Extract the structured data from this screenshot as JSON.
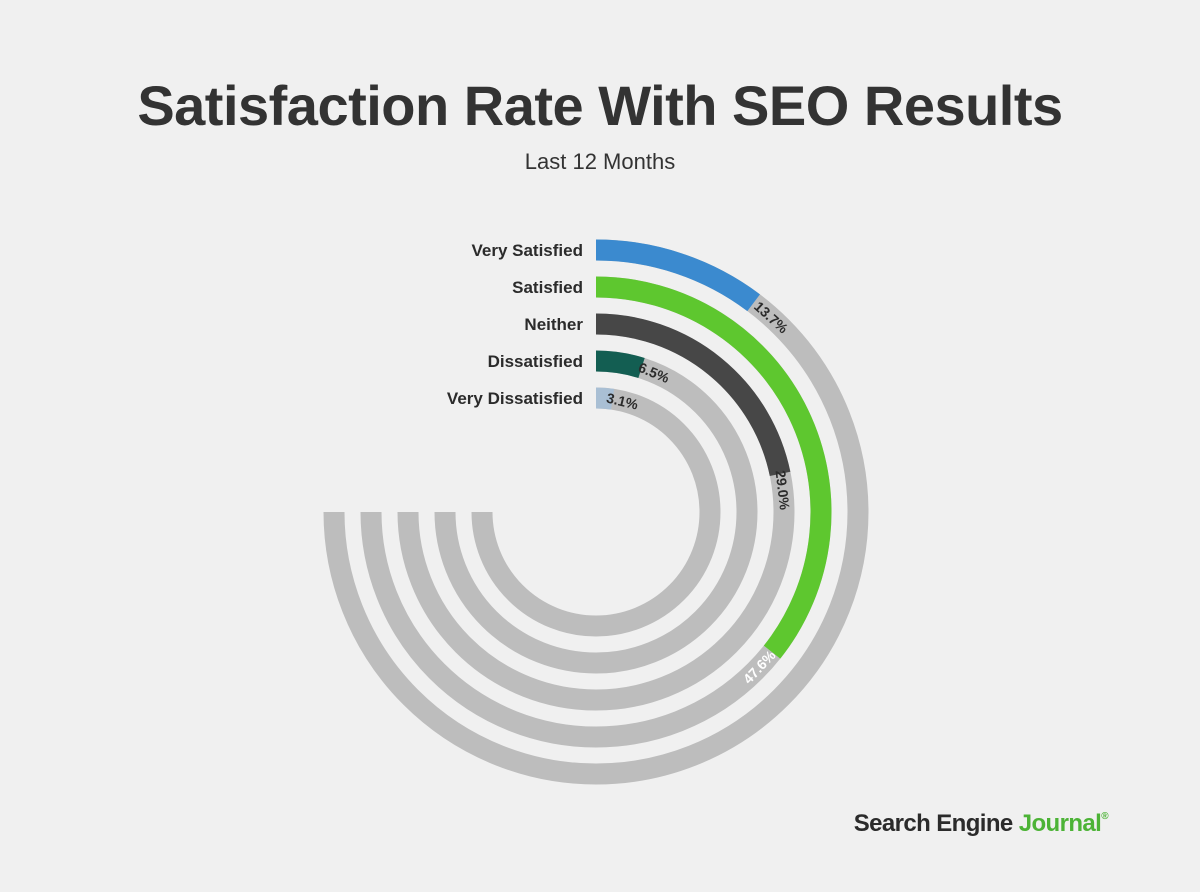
{
  "title": "Satisfaction Rate With SEO Results",
  "subtitle": "Last 12 Months",
  "brand": {
    "part1": "Search Engine ",
    "part2": "Journal",
    "mark": "®"
  },
  "colors": {
    "background": "#f0f0f0",
    "track": "#bdbdbd",
    "text": "#333333"
  },
  "chart_data": {
    "type": "radial-bar",
    "title": "Satisfaction Rate With SEO Results",
    "subtitle": "Last 12 Months",
    "unit": "%",
    "full_scale": 100,
    "arc_span_degrees": 270,
    "categories": [
      "Very Satisfied",
      "Satisfied",
      "Neither",
      "Dissatisfied",
      "Very Dissatisfied"
    ],
    "values": [
      13.7,
      47.6,
      29.0,
      6.5,
      3.1
    ],
    "value_labels": [
      "13.7%",
      "47.6%",
      "29.0%",
      "6.5%",
      "3.1%"
    ],
    "colors": [
      "#3b8acf",
      "#5ec72f",
      "#474747",
      "#135e52",
      "#a9bfd4"
    ],
    "label_colors": [
      "#2b2b2b",
      "#ffffff",
      "#2b2b2b",
      "#2b2b2b",
      "#2b2b2b"
    ],
    "grid": false,
    "legend": "none"
  }
}
